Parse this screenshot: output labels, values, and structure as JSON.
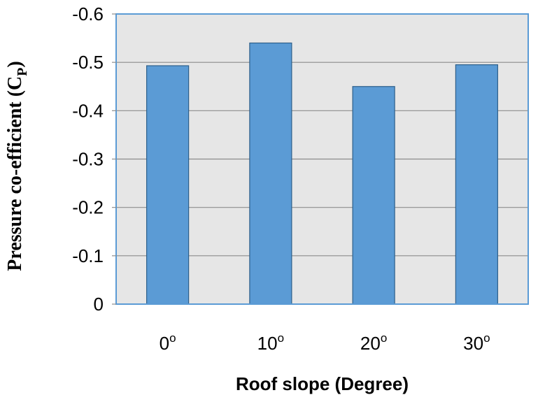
{
  "chart_data": {
    "type": "bar",
    "categories": [
      "0",
      "10",
      "20",
      "30"
    ],
    "category_superscript": "o",
    "values": [
      -0.493,
      -0.54,
      -0.45,
      -0.495
    ],
    "ylim": [
      0,
      -0.6
    ],
    "y_axis_inverted": true,
    "yticks": [
      "-0.6",
      "-0.5",
      "-0.4",
      "-0.3",
      "-0.2",
      "-0.1",
      "0"
    ],
    "ytick_values": [
      -0.6,
      -0.5,
      -0.4,
      -0.3,
      -0.2,
      -0.1,
      0
    ],
    "xlabel": "Roof slope (Degree)",
    "ylabel_main": "Pressure co-efficient (C",
    "ylabel_sub": "P",
    "ylabel_end": ")",
    "grid": true,
    "colors": {
      "plot_bg": "#e6e6e6",
      "plot_border": "#5b9bd5",
      "bar_fill": "#5b9bd5",
      "bar_stroke": "#2e5f8a",
      "grid": "#8c8c8c"
    }
  }
}
